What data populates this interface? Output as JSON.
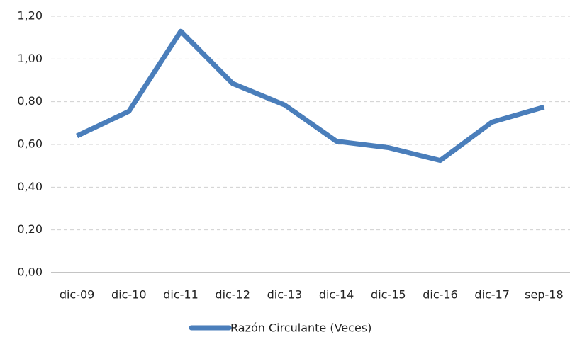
{
  "chart_data": {
    "type": "line",
    "categories": [
      "dic-09",
      "dic-10",
      "dic-11",
      "dic-12",
      "dic-13",
      "dic-14",
      "dic-15",
      "dic-16",
      "dic-17",
      "sep-18"
    ],
    "series": [
      {
        "name": "Razón Circulante (Veces)",
        "color": "#4a7ebb",
        "values": [
          0.64,
          0.755,
          1.13,
          0.885,
          0.785,
          0.615,
          0.585,
          0.525,
          0.705,
          0.775
        ]
      }
    ],
    "ylim": [
      0,
      1.2
    ],
    "yticks": [
      {
        "value": 0,
        "label": "0,00"
      },
      {
        "value": 0.2,
        "label": "0,20"
      },
      {
        "value": 0.4,
        "label": "0,40"
      },
      {
        "value": 0.6,
        "label": "0,60"
      },
      {
        "value": 0.8,
        "label": "0,80"
      },
      {
        "value": 1.0,
        "label": "1,00"
      },
      {
        "value": 1.2,
        "label": "1,20"
      }
    ],
    "grid": true,
    "legend": "bottom"
  }
}
